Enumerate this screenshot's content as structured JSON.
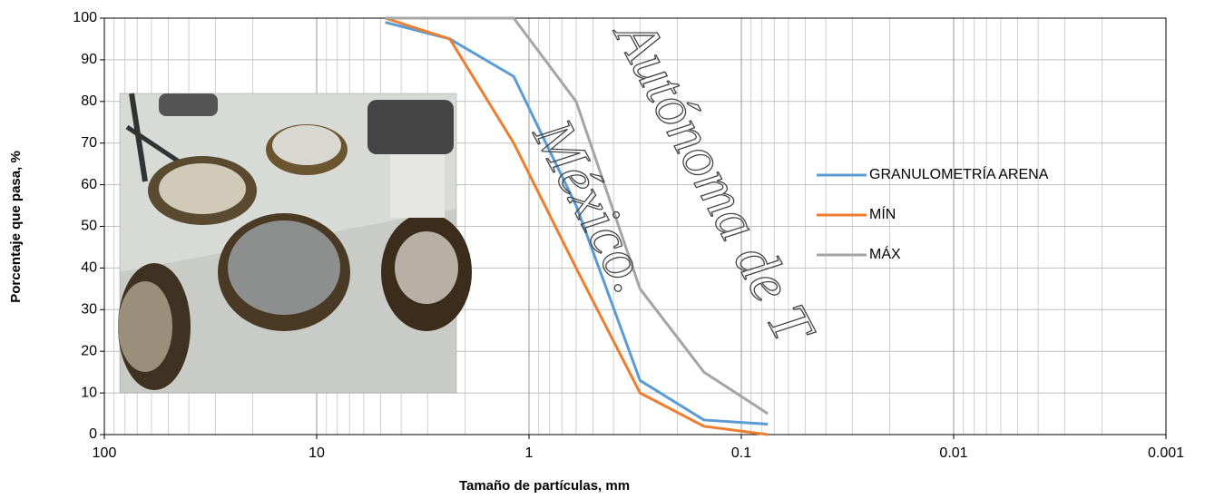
{
  "chart_data": {
    "type": "line",
    "ylabel": "Porcentaje que pasa, %",
    "xlabel": "Tamaño  de partículas, mm",
    "x": [
      4.75,
      2.36,
      1.18,
      0.6,
      0.3,
      0.15,
      0.075
    ],
    "series": [
      {
        "name": "GRANULOMETRÍA ARENA",
        "color": "#5b9bd5",
        "values": [
          99,
          95,
          86,
          55,
          13,
          3.5,
          2.5
        ]
      },
      {
        "name": "MÍN",
        "color": "#ed7d31",
        "values": [
          100,
          95,
          70,
          40,
          10,
          2,
          0
        ]
      },
      {
        "name": "MÁX",
        "color": "#a5a5a5",
        "values": [
          100,
          100,
          100,
          80,
          35,
          15,
          5
        ]
      }
    ],
    "xscale": "log",
    "xlim": [
      100,
      0.001
    ],
    "xticks": [
      100,
      10,
      1,
      0.1,
      0.01,
      0.001
    ],
    "ylim": [
      0,
      100
    ],
    "yticks": [
      0,
      10,
      20,
      30,
      40,
      50,
      60,
      70,
      80,
      90,
      100
    ],
    "grid": true,
    "minor_grid": true,
    "legend": "right",
    "annotations": [
      "México.",
      "Autónoma de T"
    ]
  }
}
